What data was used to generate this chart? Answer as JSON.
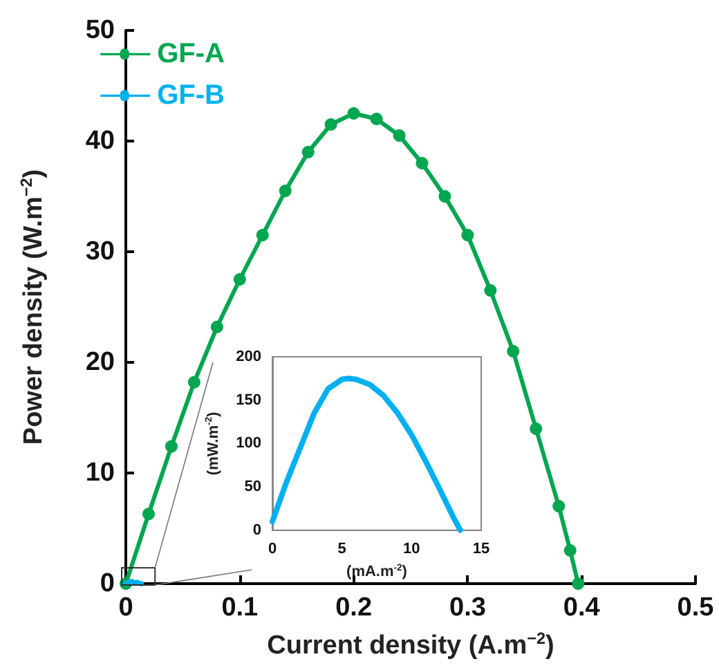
{
  "chart_data": [
    {
      "type": "line",
      "xlabel": "Current density (A.m$^{−2}$)",
      "ylabel": "Power density (W.m$^{−2}$)",
      "xlim": [
        0,
        0.5
      ],
      "xticks": [
        0,
        0.1,
        0.2,
        0.3,
        0.4,
        0.5
      ],
      "ylim": [
        0,
        50
      ],
      "yticks": [
        0,
        10,
        20,
        30,
        40,
        50
      ],
      "grid": false,
      "legend": "top left",
      "marker": "circle",
      "line_style": "solid",
      "series": [
        {
          "name": "GF-A",
          "color": "#00a650",
          "x": [
            0,
            0.02,
            0.04,
            0.06,
            0.08,
            0.1,
            0.12,
            0.14,
            0.16,
            0.18,
            0.2,
            0.22,
            0.24,
            0.26,
            0.28,
            0.3,
            0.32,
            0.34,
            0.36,
            0.38,
            0.39,
            0.397
          ],
          "values": [
            0,
            6.3,
            12.4,
            18.2,
            23.2,
            27.5,
            31.5,
            35.5,
            39,
            41.5,
            42.5,
            42,
            40.5,
            38,
            35,
            31.5,
            26.5,
            21,
            14,
            7,
            3,
            0
          ]
        },
        {
          "name": "GF-B",
          "color": "#00b0f0",
          "x": [
            0,
            0.003,
            0.0055,
            0.01,
            0.0135
          ],
          "values": [
            0.01,
            0.14,
            0.18,
            0.11,
            0
          ]
        }
      ]
    },
    {
      "type": "line",
      "xlabel": "(mA.m$^{-2}$)",
      "ylabel": "(mW.m$^{-2}$)",
      "xlim": [
        0,
        15
      ],
      "xticks": [
        0,
        5,
        10,
        15
      ],
      "ylim": [
        0,
        200
      ],
      "yticks": [
        0,
        50,
        100,
        150,
        200
      ],
      "grid": false,
      "legend": false,
      "marker": "none",
      "line_style": "solid",
      "series": [
        {
          "color": "#00b0f0",
          "x": [
            0,
            1,
            2,
            3,
            4,
            5,
            5.5,
            6,
            7,
            8,
            9,
            10,
            11,
            12,
            13,
            13.5
          ],
          "values": [
            10,
            55,
            95,
            135,
            163,
            174,
            175,
            174,
            168,
            155,
            135,
            110,
            80,
            48,
            15,
            0
          ]
        }
      ]
    }
  ]
}
